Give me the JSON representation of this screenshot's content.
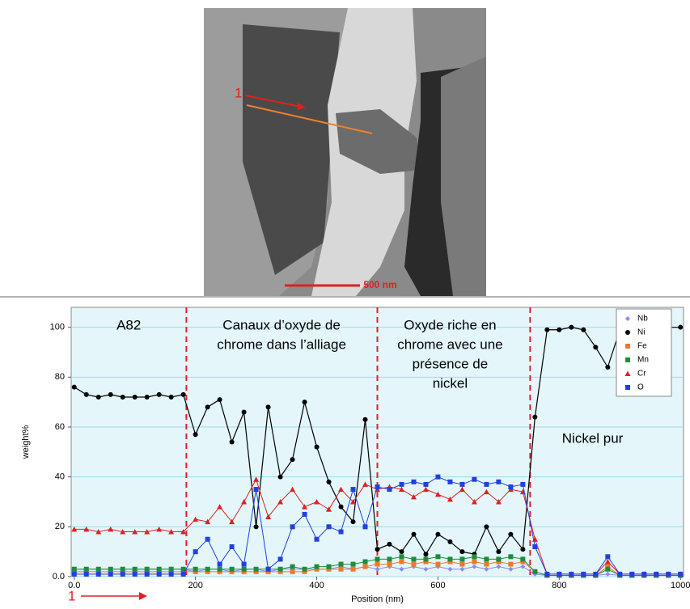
{
  "image": {
    "label": "1",
    "scale_bar": "500 nm"
  },
  "chart_data": {
    "type": "line",
    "x_label": "Position (nm)",
    "y_label": "weight%",
    "xlim": [
      -5,
      1005
    ],
    "ylim": [
      0,
      108
    ],
    "xticks": [
      {
        "value": 0,
        "label": "0.0"
      },
      200,
      400,
      600,
      800,
      1000
    ],
    "yticks": [
      {
        "value": 0,
        "label": "0.0"
      },
      20,
      40,
      60,
      80,
      100
    ],
    "grid": true,
    "legend": "upper right",
    "boundaries": [
      185,
      500,
      752
    ],
    "annotations": [
      {
        "x": 90,
        "lines": [
          "A82"
        ]
      },
      {
        "x": 342,
        "lines": [
          "Canaux d’oxyde de",
          "chrome dans l’alliage"
        ]
      },
      {
        "x": 620,
        "lines": [
          "Oxyde riche en",
          "chrome avec une",
          "présence de",
          "nickel"
        ]
      },
      {
        "x": 855,
        "lines": [
          "Nickel pur"
        ]
      }
    ],
    "start_label": "1",
    "x": [
      0,
      20,
      40,
      60,
      80,
      100,
      120,
      140,
      160,
      180,
      200,
      220,
      240,
      260,
      280,
      300,
      320,
      340,
      360,
      380,
      400,
      420,
      440,
      460,
      480,
      500,
      520,
      540,
      560,
      580,
      600,
      620,
      640,
      660,
      680,
      700,
      720,
      740,
      760,
      780,
      800,
      820,
      840,
      860,
      880,
      900,
      920,
      940,
      960,
      980,
      1000
    ],
    "series": [
      {
        "name": "Nb",
        "color": "#8c8cf0",
        "marker": "diamond",
        "values": [
          3,
          3,
          3,
          3,
          3,
          3,
          3,
          3,
          3,
          3,
          2,
          3,
          3,
          2,
          3,
          3,
          2,
          3,
          3,
          3,
          3,
          3,
          4,
          3,
          4,
          3,
          4,
          3,
          4,
          3,
          4,
          3,
          3,
          4,
          3,
          4,
          3,
          4,
          1,
          0.5,
          0.5,
          0.5,
          0.5,
          0.5,
          1,
          0.5,
          0.5,
          0.5,
          0.5,
          0.5,
          0.5
        ]
      },
      {
        "name": "Ni",
        "color": "#000000",
        "marker": "circle",
        "values": [
          76,
          73,
          72,
          73,
          72,
          72,
          72,
          73,
          72,
          73,
          57,
          68,
          71,
          54,
          66,
          20,
          68,
          40,
          47,
          70,
          52,
          38,
          28,
          22,
          63,
          11,
          13,
          10,
          17,
          9,
          17,
          14,
          10,
          9,
          20,
          10,
          17,
          11,
          64,
          99,
          99,
          100,
          99,
          92,
          84,
          99,
          100,
          99,
          100,
          100,
          100
        ]
      },
      {
        "name": "Fe",
        "color": "#f07828",
        "marker": "square",
        "values": [
          2,
          2,
          2,
          2,
          2,
          2,
          2,
          2,
          2,
          2,
          2,
          2,
          2,
          2,
          2,
          2,
          2,
          2,
          2,
          2,
          3,
          3,
          3,
          3,
          4,
          5,
          5,
          6,
          5,
          6,
          5,
          6,
          5,
          6,
          5,
          6,
          5,
          6,
          2,
          0.5,
          0.5,
          0.5,
          0.5,
          0.5,
          4,
          0.5,
          0.5,
          0.5,
          0.5,
          0.5,
          0.5
        ]
      },
      {
        "name": "Mn",
        "color": "#1e8c3c",
        "marker": "square",
        "values": [
          3,
          3,
          3,
          3,
          3,
          3,
          3,
          3,
          3,
          3,
          3,
          3,
          3,
          3,
          3,
          3,
          3,
          3,
          4,
          3,
          4,
          4,
          5,
          5,
          6,
          7,
          7,
          8,
          7,
          7,
          8,
          7,
          7,
          8,
          7,
          7,
          8,
          7,
          2,
          0.5,
          0.5,
          0.5,
          0.5,
          0.5,
          3,
          0.5,
          0.5,
          0.5,
          0.5,
          0.5,
          0.5
        ]
      },
      {
        "name": "Cr",
        "color": "#e02020",
        "marker": "triangle",
        "values": [
          19,
          19,
          18,
          19,
          18,
          18,
          18,
          19,
          18,
          18,
          23,
          22,
          28,
          22,
          30,
          39,
          24,
          30,
          35,
          28,
          30,
          27,
          35,
          30,
          37,
          35,
          36,
          35,
          32,
          35,
          33,
          31,
          35,
          30,
          34,
          30,
          35,
          34,
          15,
          1,
          1,
          1,
          1,
          1,
          6,
          1,
          1,
          1,
          1,
          1,
          1
        ]
      },
      {
        "name": "O",
        "color": "#2040e0",
        "marker": "square",
        "values": [
          1,
          1,
          1,
          1,
          1,
          1,
          1,
          1,
          1,
          1,
          10,
          15,
          5,
          12,
          5,
          35,
          3,
          7,
          20,
          25,
          15,
          20,
          18,
          35,
          20,
          36,
          35,
          37,
          38,
          37,
          40,
          38,
          37,
          39,
          37,
          38,
          36,
          37,
          12,
          1,
          1,
          1,
          1,
          1,
          8,
          1,
          1,
          1,
          1,
          1,
          1
        ]
      }
    ]
  }
}
